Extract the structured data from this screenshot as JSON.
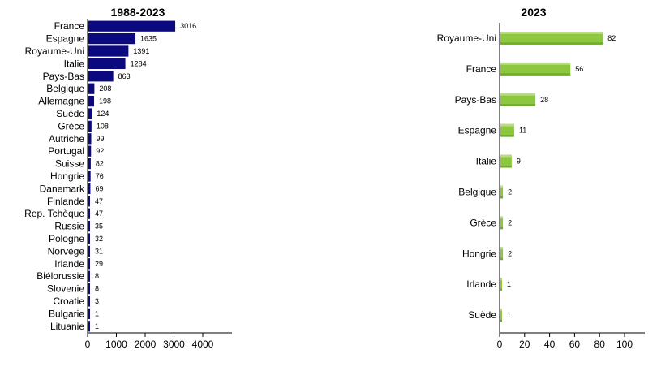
{
  "chart_data": [
    {
      "type": "bar",
      "orientation": "horizontal",
      "title": "1988-2023",
      "color": "#0a0a7e",
      "categories": [
        "France",
        "Espagne",
        "Royaume-Uni",
        "Italie",
        "Pays-Bas",
        "Belgique",
        "Allemagne",
        "Suède",
        "Grèce",
        "Autriche",
        "Portugal",
        "Suisse",
        "Hongrie",
        "Danemark",
        "Finlande",
        "Rep. Tchèque",
        "Russie",
        "Pologne",
        "Norvège",
        "Irlande",
        "Biélorussie",
        "Slovenie",
        "Croatie",
        "Bulgarie",
        "Lituanie"
      ],
      "values": [
        3016,
        1635,
        1391,
        1284,
        863,
        208,
        198,
        124,
        108,
        99,
        92,
        82,
        76,
        69,
        47,
        47,
        35,
        32,
        31,
        29,
        8,
        8,
        3,
        1,
        1
      ],
      "xlim": [
        0,
        4000
      ],
      "xticks": [
        0,
        1000,
        2000,
        3000,
        4000
      ],
      "grid": false,
      "legend": "none"
    },
    {
      "type": "bar",
      "orientation": "horizontal",
      "title": "2023",
      "color": "#8dc63f",
      "categories": [
        "Royaume-Uni",
        "France",
        "Pays-Bas",
        "Espagne",
        "Italie",
        "Belgique",
        "Grèce",
        "Hongrie",
        "Irlande",
        "Suède"
      ],
      "values": [
        82,
        56,
        28,
        11,
        9,
        2,
        2,
        2,
        1,
        1
      ],
      "xlim": [
        0,
        100
      ],
      "xticks": [
        0,
        20,
        40,
        60,
        80,
        100
      ],
      "grid": false,
      "legend": "none"
    }
  ]
}
